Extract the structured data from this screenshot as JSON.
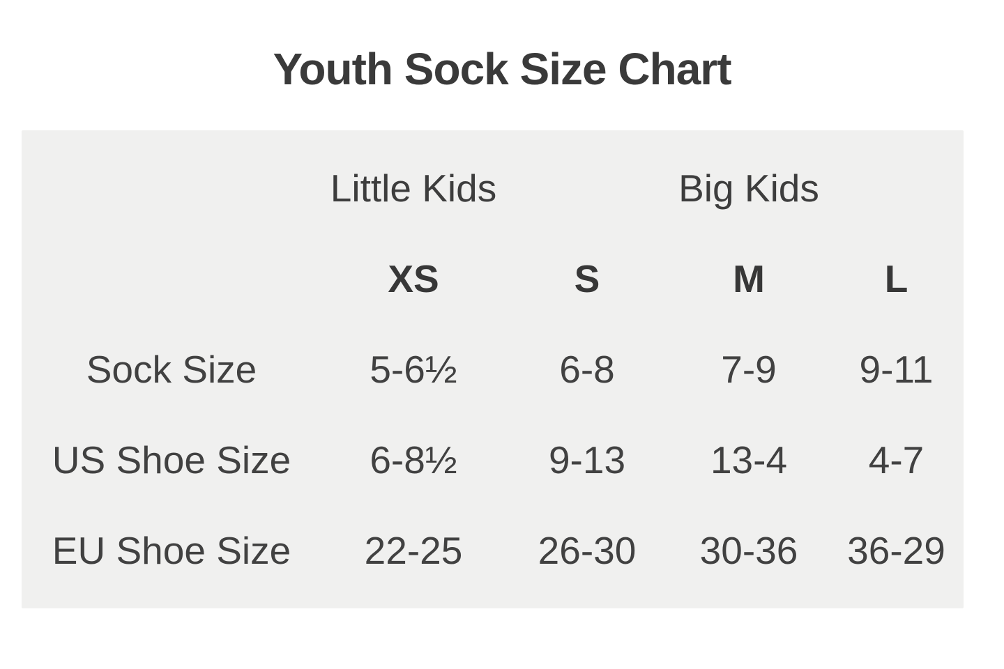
{
  "title": "Youth Sock Size Chart",
  "table": {
    "group_headers": [
      {
        "label": "Little Kids",
        "over_column": "XS"
      },
      {
        "label": "Big Kids",
        "over_column": "M"
      }
    ],
    "size_headers": [
      "XS",
      "S",
      "M",
      "L"
    ],
    "rows": [
      {
        "label": "Sock Size",
        "values": [
          "5-6½",
          "6-8",
          "7-9",
          "9-11"
        ]
      },
      {
        "label": "US Shoe Size",
        "values": [
          "6-8½",
          "9-13",
          "13-4",
          "4-7"
        ]
      },
      {
        "label": "EU Shoe Size",
        "values": [
          "22-25",
          "26-30",
          "30-36",
          "36-29"
        ]
      }
    ]
  },
  "chart_data": {
    "type": "table",
    "title": "Youth Sock Size Chart",
    "column_groups": [
      {
        "label": "Little Kids",
        "columns": [
          "XS"
        ]
      },
      {
        "label": "Big Kids",
        "columns": [
          "M"
        ]
      }
    ],
    "columns": [
      "",
      "XS",
      "S",
      "M",
      "L"
    ],
    "rows": [
      [
        "Sock Size",
        "5-6½",
        "6-8",
        "7-9",
        "9-11"
      ],
      [
        "US Shoe Size",
        "6-8½",
        "9-13",
        "13-4",
        "4-7"
      ],
      [
        "EU Shoe Size",
        "22-25",
        "26-30",
        "30-36",
        "36-29"
      ]
    ]
  },
  "colors": {
    "page_background": "#ffffff",
    "panel_background": "#f0f0ef",
    "title_text": "#3a3a3a",
    "table_text": "#414141"
  }
}
